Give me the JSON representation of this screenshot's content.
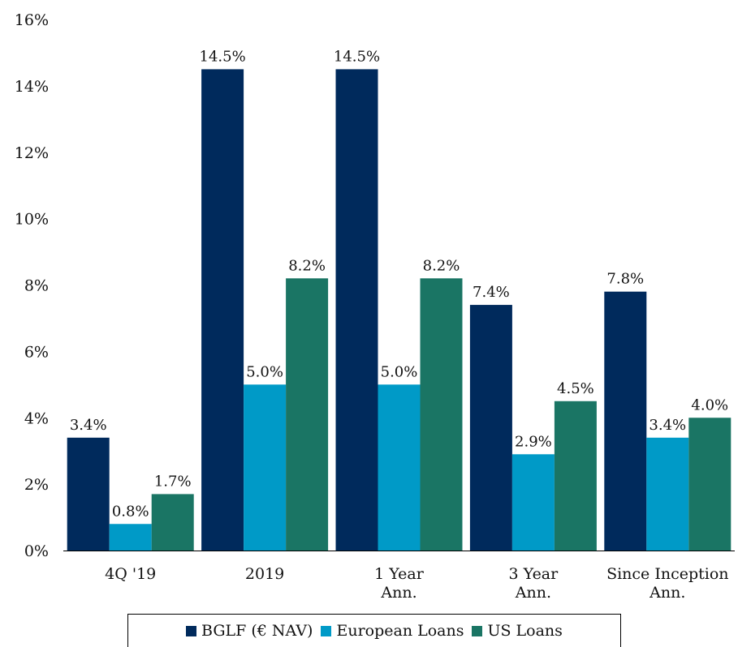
{
  "chart_data": {
    "type": "bar",
    "categories": [
      [
        "4Q '19"
      ],
      [
        "2019"
      ],
      [
        "1 Year",
        "Ann."
      ],
      [
        "3 Year",
        "Ann."
      ],
      [
        "Since Inception",
        "Ann."
      ]
    ],
    "series": [
      {
        "name": "BGLF (€ NAV)",
        "color": "#002a5c",
        "values": [
          3.4,
          14.5,
          14.5,
          7.4,
          7.8
        ],
        "labels": [
          "3.4%",
          "14.5%",
          "14.5%",
          "7.4%",
          "7.8%"
        ]
      },
      {
        "name": "European Loans",
        "color": "#009ac7",
        "values": [
          0.8,
          5.0,
          5.0,
          2.9,
          3.4
        ],
        "labels": [
          "0.8%",
          "5.0%",
          "5.0%",
          "2.9%",
          "3.4%"
        ]
      },
      {
        "name": "US Loans",
        "color": "#1a7564",
        "values": [
          1.7,
          8.2,
          8.2,
          4.5,
          4.0
        ],
        "labels": [
          "1.7%",
          "8.2%",
          "8.2%",
          "4.5%",
          "4.0%"
        ]
      }
    ],
    "ylim": [
      0,
      16
    ],
    "yticks": [
      0,
      2,
      4,
      6,
      8,
      10,
      12,
      14,
      16
    ],
    "ytick_labels": [
      "0%",
      "2%",
      "4%",
      "6%",
      "8%",
      "10%",
      "12%",
      "14%",
      "16%"
    ],
    "grid": false,
    "legend_position": "bottom"
  }
}
